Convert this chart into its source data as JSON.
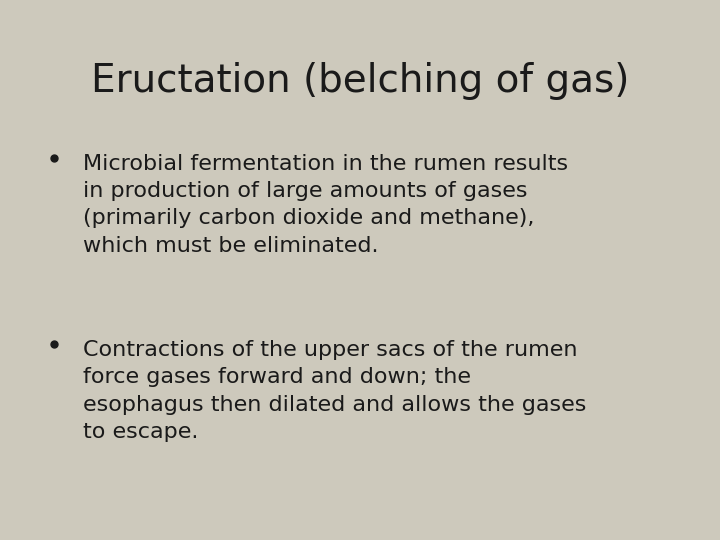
{
  "background_color": "#cdc9bc",
  "title": "Eructation (belching of gas)",
  "title_fontsize": 28,
  "title_color": "#1a1a1a",
  "title_font": "Georgia",
  "bullet_font": "Georgia",
  "bullet_fontsize": 16,
  "bullet_color": "#1a1a1a",
  "bullet_points": [
    "Microbial fermentation in the rumen results\nin production of large amounts of gases\n(primarily carbon dioxide and methane),\nwhich must be eliminated.",
    "Contractions of the upper sacs of the rumen\nforce gases forward and down; the\nesophagus then dilated and allows the gases\nto escape."
  ],
  "fig_width": 7.2,
  "fig_height": 5.4,
  "dpi": 100
}
